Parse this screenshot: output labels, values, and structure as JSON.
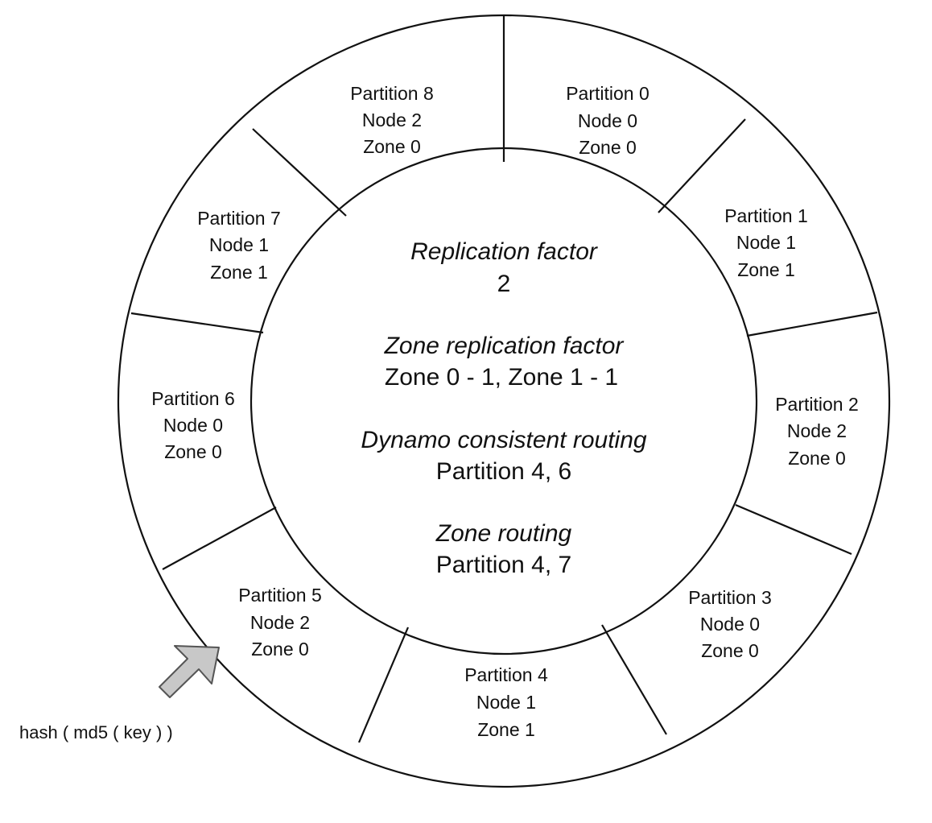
{
  "partitions": [
    {
      "partition": "Partition 0",
      "node": "Node 0",
      "zone": "Zone 0"
    },
    {
      "partition": "Partition 1",
      "node": "Node 1",
      "zone": "Zone 1"
    },
    {
      "partition": "Partition 2",
      "node": "Node 2",
      "zone": "Zone 0"
    },
    {
      "partition": "Partition 3",
      "node": "Node 0",
      "zone": "Zone 0"
    },
    {
      "partition": "Partition 4",
      "node": "Node 1",
      "zone": "Zone 1"
    },
    {
      "partition": "Partition 5",
      "node": "Node 2",
      "zone": "Zone 0"
    },
    {
      "partition": "Partition 6",
      "node": "Node 0",
      "zone": "Zone 0"
    },
    {
      "partition": "Partition 7",
      "node": "Node 1",
      "zone": "Zone 1"
    },
    {
      "partition": "Partition 8",
      "node": "Node 2",
      "zone": "Zone 0"
    }
  ],
  "center": {
    "replication_factor": {
      "heading": "Replication factor",
      "value": "2"
    },
    "zone_replication_factor": {
      "heading": "Zone replication factor",
      "value": "Zone 0 - 1, Zone 1 - 1"
    },
    "dynamo_routing": {
      "heading": "Dynamo consistent routing",
      "value": "Partition 4, 6"
    },
    "zone_routing": {
      "heading": "Zone routing",
      "value": "Partition 4, 7"
    }
  },
  "hash_label": "hash ( md5 ( key ) )",
  "colors": {
    "stroke": "#111111",
    "arrow_fill": "#c8c8c8",
    "arrow_stroke": "#555555"
  }
}
